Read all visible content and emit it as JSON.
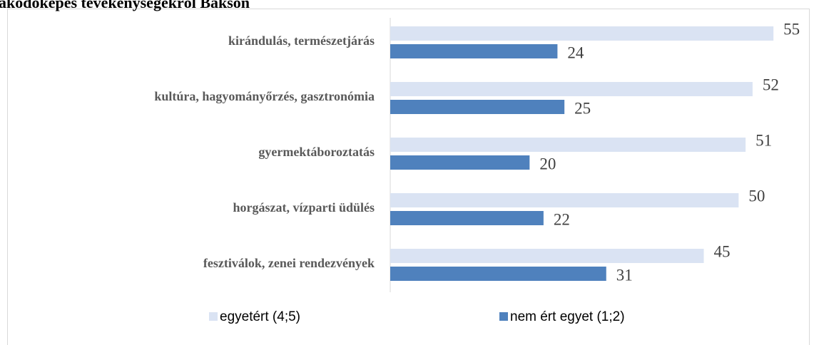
{
  "chart_data": {
    "type": "bar",
    "orientation": "horizontal",
    "title": "akodóképes tevékenységekről Bakson",
    "categories": [
      "kirándulás, természetjárás",
      "kultúra, hagyományőrzés, gasztronómia",
      "gyermektáboroztatás",
      "horgászat, vízparti üdülés",
      "fesztiválok, zenei rendezvények"
    ],
    "series": [
      {
        "name": "egyetért (4;5)",
        "color": "#dae3f3",
        "values": [
          55,
          52,
          51,
          50,
          45
        ]
      },
      {
        "name": "nem ért egyet (1;2)",
        "color": "#4f81bd",
        "values": [
          24,
          25,
          20,
          22,
          31
        ]
      }
    ],
    "xlim": [
      0,
      60
    ],
    "legend": "bottom"
  }
}
